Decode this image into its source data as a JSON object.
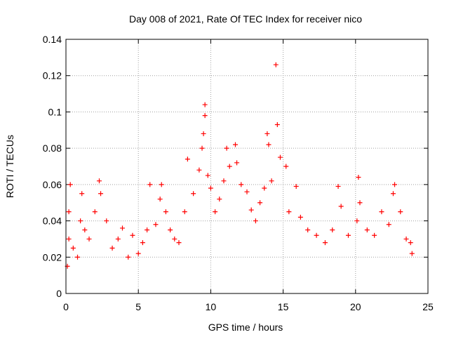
{
  "chart_data": {
    "type": "scatter",
    "title": "Day 008 of 2021, Rate Of TEC Index for receiver nico",
    "xlabel": "GPS time / hours",
    "ylabel": "ROTI / TECUs",
    "xlim": [
      0,
      25
    ],
    "ylim": [
      0,
      0.14
    ],
    "xticks": [
      0,
      5,
      10,
      15,
      20,
      25
    ],
    "xtick_labels": [
      "0",
      "5",
      "10",
      "15",
      "20",
      "25"
    ],
    "yticks": [
      0,
      0.02,
      0.04,
      0.06,
      0.08,
      0.1,
      0.12,
      0.14
    ],
    "ytick_labels": [
      "0",
      "0.02",
      "0.04",
      "0.06",
      "0.08",
      "0.1",
      "0.12",
      "0.14"
    ],
    "grid": true,
    "marker": "+",
    "series": [
      {
        "name": "ROTI",
        "color": "#ff0000",
        "points": [
          [
            0.1,
            0.015
          ],
          [
            0.2,
            0.03
          ],
          [
            0.2,
            0.045
          ],
          [
            0.3,
            0.06
          ],
          [
            0.5,
            0.025
          ],
          [
            0.8,
            0.02
          ],
          [
            1.0,
            0.04
          ],
          [
            1.1,
            0.055
          ],
          [
            1.3,
            0.035
          ],
          [
            1.6,
            0.03
          ],
          [
            2.0,
            0.045
          ],
          [
            2.3,
            0.062
          ],
          [
            2.4,
            0.055
          ],
          [
            2.8,
            0.04
          ],
          [
            3.2,
            0.025
          ],
          [
            3.6,
            0.03
          ],
          [
            3.9,
            0.036
          ],
          [
            4.3,
            0.02
          ],
          [
            4.6,
            0.032
          ],
          [
            5.0,
            0.022
          ],
          [
            5.3,
            0.028
          ],
          [
            5.6,
            0.035
          ],
          [
            5.8,
            0.06
          ],
          [
            6.2,
            0.038
          ],
          [
            6.5,
            0.052
          ],
          [
            6.6,
            0.06
          ],
          [
            6.9,
            0.045
          ],
          [
            7.2,
            0.035
          ],
          [
            7.5,
            0.03
          ],
          [
            7.8,
            0.028
          ],
          [
            8.2,
            0.045
          ],
          [
            8.4,
            0.074
          ],
          [
            8.8,
            0.055
          ],
          [
            9.2,
            0.068
          ],
          [
            9.4,
            0.08
          ],
          [
            9.5,
            0.088
          ],
          [
            9.6,
            0.098
          ],
          [
            9.6,
            0.104
          ],
          [
            9.8,
            0.065
          ],
          [
            10.0,
            0.058
          ],
          [
            10.3,
            0.045
          ],
          [
            10.6,
            0.052
          ],
          [
            10.9,
            0.062
          ],
          [
            11.1,
            0.08
          ],
          [
            11.3,
            0.07
          ],
          [
            11.7,
            0.082
          ],
          [
            11.8,
            0.072
          ],
          [
            12.1,
            0.06
          ],
          [
            12.5,
            0.056
          ],
          [
            12.8,
            0.046
          ],
          [
            13.1,
            0.04
          ],
          [
            13.4,
            0.05
          ],
          [
            13.7,
            0.058
          ],
          [
            13.9,
            0.088
          ],
          [
            14.0,
            0.082
          ],
          [
            14.2,
            0.062
          ],
          [
            14.5,
            0.126
          ],
          [
            14.6,
            0.093
          ],
          [
            14.8,
            0.075
          ],
          [
            15.2,
            0.07
          ],
          [
            15.4,
            0.045
          ],
          [
            15.9,
            0.059
          ],
          [
            16.2,
            0.042
          ],
          [
            16.7,
            0.035
          ],
          [
            17.3,
            0.032
          ],
          [
            17.9,
            0.028
          ],
          [
            18.4,
            0.035
          ],
          [
            18.8,
            0.059
          ],
          [
            19.0,
            0.048
          ],
          [
            19.5,
            0.032
          ],
          [
            20.1,
            0.04
          ],
          [
            20.2,
            0.064
          ],
          [
            20.3,
            0.05
          ],
          [
            20.8,
            0.035
          ],
          [
            21.3,
            0.032
          ],
          [
            21.8,
            0.045
          ],
          [
            22.3,
            0.038
          ],
          [
            22.6,
            0.055
          ],
          [
            22.7,
            0.06
          ],
          [
            23.1,
            0.045
          ],
          [
            23.5,
            0.03
          ],
          [
            23.8,
            0.028
          ],
          [
            23.9,
            0.022
          ]
        ]
      }
    ]
  }
}
